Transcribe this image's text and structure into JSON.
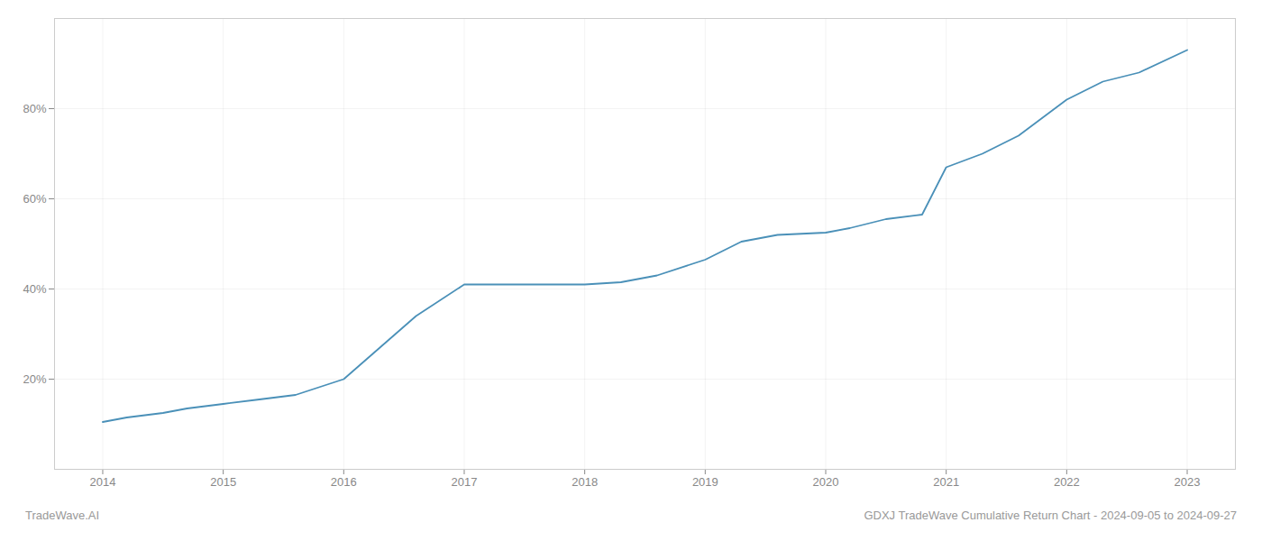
{
  "chart_data": {
    "type": "line",
    "x": [
      2014.0,
      2014.2,
      2014.5,
      2014.7,
      2015.0,
      2015.3,
      2015.6,
      2016.0,
      2016.3,
      2016.6,
      2017.0,
      2017.3,
      2017.6,
      2018.0,
      2018.3,
      2018.6,
      2019.0,
      2019.3,
      2019.6,
      2020.0,
      2020.2,
      2020.5,
      2020.8,
      2021.0,
      2021.3,
      2021.6,
      2022.0,
      2022.3,
      2022.6,
      2023.0
    ],
    "values": [
      10.5,
      11.5,
      12.5,
      13.5,
      14.5,
      15.5,
      16.5,
      20.0,
      27.0,
      34.0,
      41.0,
      41.0,
      41.0,
      41.0,
      41.5,
      43.0,
      46.5,
      50.5,
      52.0,
      52.5,
      53.5,
      55.5,
      56.5,
      67.0,
      70.0,
      74.0,
      82.0,
      86.0,
      88.0,
      93.0
    ],
    "color": "#4a90b8",
    "xlim": [
      2013.6,
      2023.4
    ],
    "xticks": [
      2014,
      2015,
      2016,
      2017,
      2018,
      2019,
      2020,
      2021,
      2022,
      2023
    ],
    "ylim": [
      0,
      100
    ],
    "yticks": [
      {
        "value": 20,
        "label": "20%"
      },
      {
        "value": 40,
        "label": "40%"
      },
      {
        "value": 60,
        "label": "60%"
      },
      {
        "value": 80,
        "label": "80%"
      }
    ],
    "grid": true,
    "annotations": [
      "TradeWave.AI",
      "GDXJ TradeWave Cumulative Return Chart - 2024-09-05 to 2024-09-27"
    ]
  }
}
